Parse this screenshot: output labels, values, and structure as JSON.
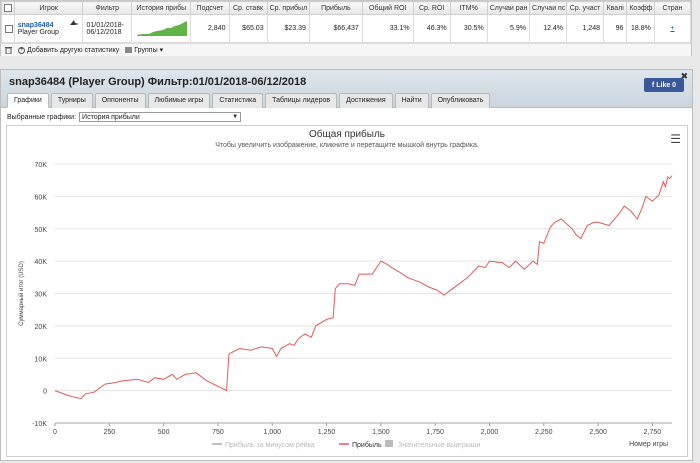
{
  "stats": {
    "headers": [
      "Игрок",
      "Фильтр",
      "История прибы",
      "Подсчет",
      "Ср. ставк",
      "Ср. прибыл",
      "Прибыль",
      "Общий ROI",
      "Ср. ROI",
      "ITM%",
      "Случаи ран",
      "Случаи пс",
      "Ср. участ",
      "Квалі",
      "Коэфф",
      "Стран"
    ],
    "player_name": "snap36484",
    "player_group": "Player Group",
    "filter_line1": "01/01/2018-",
    "filter_line2": "06/12/2018",
    "count": "2,840",
    "avg_stake": "$65.03",
    "avg_profit": "$23.39",
    "profit": "$66,437",
    "total_roi": "33.1%",
    "avg_roi": "46.3%",
    "itm": "30.5%",
    "early_cases": "5.9%",
    "late_cases": "12.4%",
    "avg_entrants": "1,248",
    "qual": "96",
    "coef": "18.8%",
    "country_link": "+",
    "toolbar_add": "Добавить другую статистику",
    "toolbar_groups": "Группы"
  },
  "panel": {
    "title": "snap36484 (Player Group) Фильтр:01/01/2018-06/12/2018",
    "like_label": "Like 0",
    "close_glyph": "✖",
    "tabs": [
      "Графики",
      "Турниры",
      "Оппоненты",
      "Любимые игры",
      "Статистика",
      "Таблицы лидеров",
      "Достижения",
      "Найти",
      "Опубликовать"
    ],
    "graph_label": "Выбранные графики:",
    "graph_value": "История прибыли"
  },
  "colors": {
    "profit_line": "#e25b5b",
    "rake_line": "#aaaaaa",
    "significant": "#bbbbbb"
  },
  "chart_data": {
    "type": "line",
    "title": "Общая прибыль",
    "subtitle": "Чтобы увеличить изображение, кликните и перетащите мышкой внутрь графика.",
    "ylabel": "Суммарный итог (USD)",
    "xlabel": "Номер игры",
    "xlim": [
      0,
      2840
    ],
    "ylim": [
      -10000,
      70000
    ],
    "x_ticks": [
      "0",
      "250",
      "500",
      "750",
      "1,000",
      "1,250",
      "1,500",
      "1,750",
      "2,000",
      "2,250",
      "2,500",
      "2,750"
    ],
    "y_ticks": [
      "-10K",
      "0",
      "10K",
      "20K",
      "30K",
      "40K",
      "50K",
      "60K",
      "70K"
    ],
    "legend": [
      "Прибыль за минусом рейка",
      "Прибыль",
      "Значительные выигрыши"
    ],
    "series": [
      {
        "name": "Прибыль",
        "x": [
          0,
          60,
          120,
          140,
          180,
          230,
          280,
          310,
          380,
          430,
          460,
          500,
          540,
          560,
          600,
          650,
          700,
          790,
          800,
          805,
          850,
          900,
          950,
          1000,
          1020,
          1040,
          1080,
          1100,
          1120,
          1150,
          1180,
          1200,
          1250,
          1280,
          1290,
          1310,
          1350,
          1380,
          1400,
          1460,
          1500,
          1530,
          1550,
          1600,
          1620,
          1680,
          1720,
          1760,
          1780,
          1790,
          1820,
          1860,
          1900,
          1950,
          1980,
          2000,
          2060,
          2090,
          2120,
          2160,
          2200,
          2220,
          2230,
          2250,
          2280,
          2300,
          2330,
          2380,
          2400,
          2420,
          2450,
          2480,
          2500,
          2550,
          2600,
          2620,
          2650,
          2680,
          2700,
          2720,
          2750,
          2780,
          2800,
          2810,
          2820,
          2830,
          2840
        ],
        "values": [
          0,
          -1500,
          -2500,
          -1000,
          -500,
          2000,
          2500,
          3000,
          3500,
          2500,
          4000,
          3500,
          5000,
          3500,
          5000,
          5500,
          3000,
          0,
          11000,
          11500,
          13000,
          12500,
          13500,
          13000,
          10500,
          13000,
          14500,
          14000,
          16000,
          17500,
          16500,
          20000,
          22000,
          22500,
          31500,
          33000,
          33000,
          32500,
          36000,
          36000,
          40000,
          39000,
          38000,
          36000,
          35000,
          33500,
          32000,
          31000,
          30000,
          29500,
          31000,
          33000,
          35000,
          38500,
          38000,
          40000,
          39500,
          38000,
          40000,
          37500,
          40000,
          39000,
          46000,
          45500,
          50500,
          52000,
          53000,
          50000,
          48000,
          47000,
          51000,
          52000,
          52000,
          51000,
          55000,
          57000,
          55500,
          53000,
          56000,
          60000,
          58500,
          60500,
          64500,
          63000,
          66000,
          65500,
          66437
        ]
      }
    ],
    "grid": true,
    "legend_position": "bottom"
  }
}
